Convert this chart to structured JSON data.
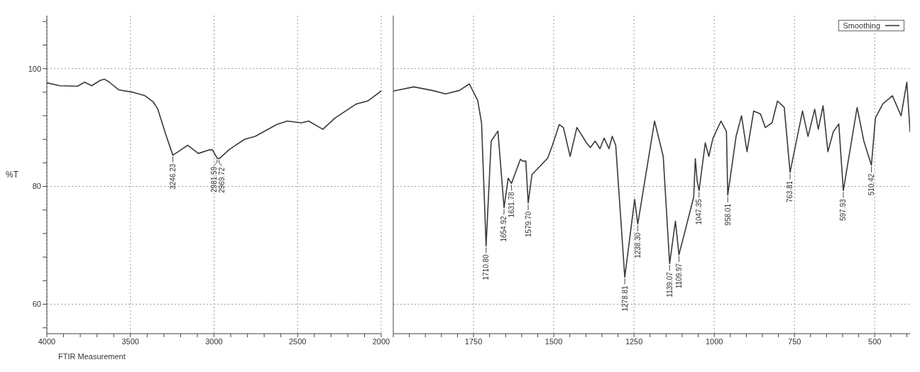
{
  "chart_data": [
    {
      "type": "line",
      "ylabel": "%T",
      "xlim": [
        4000,
        2000
      ],
      "ylim": [
        55,
        109
      ],
      "xticks": [
        4000,
        {
          "value": 3900,
          "label": null
        },
        {
          "value": 3800,
          "label": null
        },
        {
          "value": 3700,
          "label": null
        },
        {
          "value": 3600,
          "label": null
        },
        3500,
        {
          "value": 3400,
          "label": null
        },
        {
          "value": 3300,
          "label": null
        },
        {
          "value": 3200,
          "label": null
        },
        {
          "value": 3100,
          "label": null
        },
        3000,
        {
          "value": 2900,
          "label": null
        },
        {
          "value": 2800,
          "label": null
        },
        {
          "value": 2700,
          "label": null
        },
        {
          "value": 2600,
          "label": null
        },
        2500,
        {
          "value": 2400,
          "label": null
        },
        {
          "value": 2300,
          "label": null
        },
        {
          "value": 2200,
          "label": null
        },
        {
          "value": 2100,
          "label": null
        },
        2000
      ],
      "yticks": [
        {
          "value": 56,
          "label": null
        },
        60,
        {
          "value": 64,
          "label": null
        },
        {
          "value": 68,
          "label": null
        },
        {
          "value": 72,
          "label": null
        },
        {
          "value": 76,
          "label": null
        },
        80,
        {
          "value": 84,
          "label": null
        },
        {
          "value": 88,
          "label": null
        },
        {
          "value": 92,
          "label": null
        },
        {
          "value": 96,
          "label": null
        },
        100,
        {
          "value": 104,
          "label": null
        },
        {
          "value": 108,
          "label": null
        }
      ],
      "grid": true,
      "x": [
        4000,
        3923,
        3817,
        3774,
        3732,
        3681,
        3655,
        3626,
        3570,
        3489,
        3413,
        3362,
        3336,
        3285,
        3246.23,
        3209,
        3157,
        3094,
        3030,
        3009,
        2981.59,
        2969.72,
        2911,
        2881,
        2817,
        2753,
        2626,
        2562,
        2477,
        2434,
        2349,
        2277,
        2149,
        2081,
        2000
      ],
      "series": [
        {
          "color": "#3a3a3a",
          "values": [
            97.6,
            97.1,
            97.0,
            97.7,
            97.1,
            98.0,
            98.2,
            97.7,
            96.4,
            96.0,
            95.4,
            94.3,
            93.1,
            88.5,
            85.3,
            86.0,
            87.0,
            85.6,
            86.2,
            86.2,
            84.8,
            84.7,
            86.2,
            86.8,
            88.0,
            88.5,
            90.5,
            91.1,
            90.8,
            91.1,
            89.7,
            91.6,
            94.0,
            94.5,
            96.2
          ]
        }
      ],
      "annotations": [
        {
          "text": "3246.23",
          "x": 3246.23,
          "y": 85.3
        },
        {
          "text": "2981.59",
          "x": 2981.59,
          "y": 84.8
        },
        {
          "text": "2969.72",
          "x": 2969.72,
          "y": 84.7
        },
        "FTIR Measurement"
      ]
    },
    {
      "type": "line",
      "xlim": [
        2000,
        390
      ],
      "ylim": [
        55,
        109
      ],
      "tick_labels": "x",
      "xticks": [
        {
          "value": 2000,
          "label": null
        },
        {
          "value": 1950,
          "label": null
        },
        {
          "value": 1900,
          "label": null
        },
        {
          "value": 1850,
          "label": null
        },
        {
          "value": 1800,
          "label": null
        },
        1750,
        {
          "value": 1700,
          "label": null
        },
        {
          "value": 1650,
          "label": null
        },
        {
          "value": 1600,
          "label": null
        },
        {
          "value": 1550,
          "label": null
        },
        1500,
        {
          "value": 1450,
          "label": null
        },
        {
          "value": 1400,
          "label": null
        },
        {
          "value": 1350,
          "label": null
        },
        {
          "value": 1300,
          "label": null
        },
        1250,
        {
          "value": 1200,
          "label": null
        },
        {
          "value": 1150,
          "label": null
        },
        {
          "value": 1100,
          "label": null
        },
        {
          "value": 1050,
          "label": null
        },
        1000,
        {
          "value": 950,
          "label": null
        },
        {
          "value": 900,
          "label": null
        },
        {
          "value": 850,
          "label": null
        },
        {
          "value": 800,
          "label": null
        },
        750,
        {
          "value": 700,
          "label": null
        },
        {
          "value": 650,
          "label": null
        },
        {
          "value": 600,
          "label": null
        },
        {
          "value": 550,
          "label": null
        },
        500,
        {
          "value": 450,
          "label": null
        },
        {
          "value": 400,
          "label": null
        }
      ],
      "yticks": [
        60,
        80,
        100
      ],
      "grid": true,
      "legend": "top right",
      "x": [
        2000,
        1936,
        1879,
        1837,
        1794,
        1763,
        1737,
        1725,
        1710.8,
        1695,
        1674,
        1654.92,
        1642,
        1631.78,
        1604,
        1597,
        1587,
        1579.7,
        1568,
        1540,
        1519,
        1504,
        1483,
        1470,
        1449,
        1428,
        1398,
        1386,
        1371,
        1356,
        1343,
        1328,
        1318,
        1307,
        1278.81,
        1248,
        1238.3,
        1186,
        1159,
        1139.07,
        1121,
        1109.97,
        1064,
        1059,
        1053,
        1047.35,
        1028,
        1017,
        1004,
        979,
        962,
        958.01,
        932,
        915,
        898,
        877,
        856,
        841,
        820,
        803,
        782,
        763.81,
        725,
        708,
        687,
        676,
        661,
        646,
        629,
        612,
        597.93,
        555,
        534,
        510.42,
        498,
        475,
        445,
        418,
        400,
        390
      ],
      "series": [
        {
          "name": "Smoothing",
          "color": "#3a3a3a",
          "values": [
            96.2,
            96.9,
            96.3,
            95.7,
            96.3,
            97.4,
            94.6,
            90.8,
            69.9,
            87.7,
            89.4,
            76.4,
            81.4,
            80.5,
            84.6,
            84.3,
            84.3,
            77.2,
            82.0,
            83.6,
            84.8,
            87.0,
            90.5,
            90.0,
            85.1,
            90.0,
            87.4,
            86.6,
            87.7,
            86.4,
            88.2,
            86.4,
            88.5,
            87.0,
            64.6,
            77.8,
            73.6,
            91.1,
            85.1,
            66.9,
            74.1,
            68.4,
            78.2,
            84.7,
            80.8,
            79.3,
            87.4,
            85.1,
            88.2,
            91.1,
            89.3,
            78.5,
            88.5,
            92.0,
            85.9,
            92.8,
            92.3,
            90.0,
            90.8,
            94.5,
            93.4,
            82.4,
            92.8,
            88.5,
            93.1,
            89.7,
            93.7,
            85.9,
            89.3,
            90.6,
            79.3,
            93.4,
            87.7,
            83.6,
            91.6,
            94.0,
            95.4,
            92.0,
            97.7,
            89.3
          ]
        }
      ],
      "annotations": [
        {
          "text": "1710.80",
          "x": 1710.8,
          "y": 69.9
        },
        {
          "text": "1654.92",
          "x": 1654.92,
          "y": 76.4
        },
        {
          "text": "1631.78",
          "x": 1631.78,
          "y": 80.5
        },
        {
          "text": "1579.70",
          "x": 1579.7,
          "y": 77.2
        },
        {
          "text": "1278.81",
          "x": 1278.81,
          "y": 64.6
        },
        {
          "text": "1238.30",
          "x": 1238.3,
          "y": 73.6
        },
        {
          "text": "1139.07",
          "x": 1139.07,
          "y": 66.9
        },
        {
          "text": "1109.97",
          "x": 1109.97,
          "y": 68.4
        },
        {
          "text": "1047.35",
          "x": 1047.35,
          "y": 79.3
        },
        {
          "text": "958.01",
          "x": 958.01,
          "y": 78.5
        },
        {
          "text": "763.81",
          "x": 763.81,
          "y": 82.4
        },
        {
          "text": "597.93",
          "x": 597.93,
          "y": 79.3
        },
        {
          "text": "510.42",
          "x": 510.42,
          "y": 83.6
        }
      ]
    }
  ]
}
